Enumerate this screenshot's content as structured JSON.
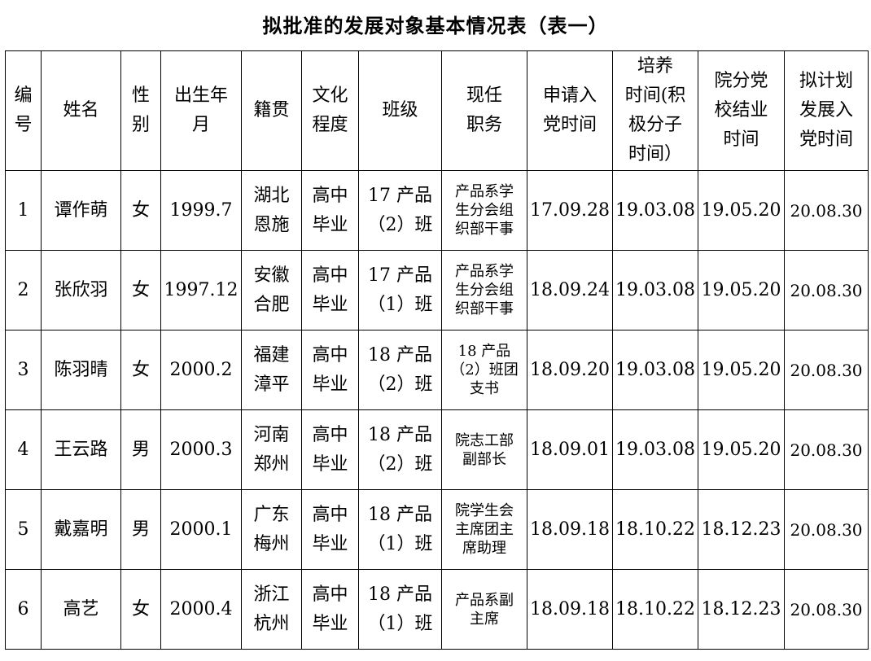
{
  "title": "拟批准的发展对象基本情况表（表一）",
  "headers": [
    "编\n号",
    "姓名",
    "性\n别",
    "出生年\n月",
    "籍贯",
    "文化\n程度",
    "班级",
    "现任\n职务",
    "申请入\n党时间",
    "培养\n时间(积\n极分子\n时间）",
    "院分党\n校结业\n时间",
    "拟计划\n发展入\n党时间"
  ],
  "rows": [
    [
      "1",
      "谭作萌",
      "女",
      "1999.7",
      "湖北\n恩施",
      "高中\n毕业",
      "17 产品\n（2）班",
      "产品系学\n生分会组\n织部干事",
      "17.09.28",
      "19.03.08",
      "19.05.20",
      "20.08.30"
    ],
    [
      "2",
      "张欣羽",
      "女",
      "1997.12",
      "安徽\n合肥",
      "高中\n毕业",
      "17 产品\n（1）班",
      "产品系学\n生分会组\n织部干事",
      "18.09.24",
      "19.03.08",
      "19.05.20",
      "20.08.30"
    ],
    [
      "3",
      "陈羽晴",
      "女",
      "2000.2",
      "福建\n漳平",
      "高中\n毕业",
      "18 产品\n（2）班",
      "18 产品\n（2）班团\n支书",
      "18.09.20",
      "19.03.08",
      "19.05.20",
      "20.08.30"
    ],
    [
      "4",
      "王云路",
      "男",
      "2000.3",
      "河南\n郑州",
      "高中\n毕业",
      "18 产品\n（2）班",
      "院志工部\n副部长",
      "18.09.01",
      "19.03.08",
      "19.05.20",
      "20.08.30"
    ],
    [
      "5",
      "戴嘉明",
      "男",
      "2000.1",
      "广东\n梅州",
      "高中\n毕业",
      "18 产品\n（1）班",
      "院学生会\n主席团主\n席助理",
      "18.09.18",
      "18.10.22",
      "18.12.23",
      "20.08.30"
    ],
    [
      "6",
      "高艺",
      "女",
      "2000.4",
      "浙江\n杭州",
      "高中\n毕业",
      "18 产品\n（1）班",
      "产品系副\n主席",
      "18.09.18",
      "18.10.22",
      "18.12.23",
      "20.08.30"
    ]
  ]
}
